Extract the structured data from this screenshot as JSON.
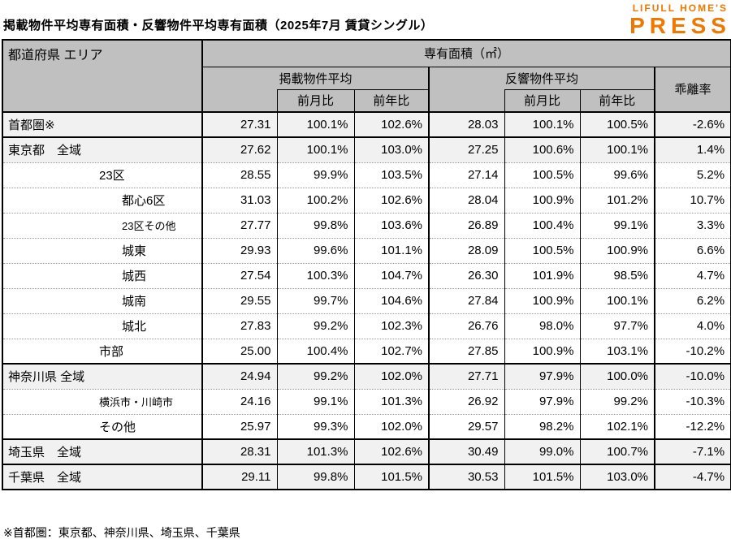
{
  "page_title": "掲載物件平均専有面積・反響物件平均専有面積（2025年7月 賃貸シングル）",
  "footnote": "※首都圏：東京都、神奈川県、埼玉県、千葉県",
  "logo": {
    "line1": "LIFULL HOME'S",
    "line2": "PRESS"
  },
  "colors": {
    "header_bg": "#c0c0c0",
    "shaded_row_bg": "#f1f1f1",
    "border": "#000000",
    "dotted_separator": "#9a9a9a",
    "logo_orange": "#ee7800"
  },
  "chart_data": {
    "type": "table",
    "title": "掲載物件平均専有面積・反響物件平均専有面積（2025年7月 賃貸シングル）",
    "corner_header": "都道府県 エリア",
    "unit_header": "専有面積（㎡）",
    "groups": {
      "listed": "掲載物件平均",
      "inquiry": "反響物件平均",
      "deviation": "乖離率"
    },
    "subheaders": {
      "mom": "前月比",
      "yoy": "前年比"
    },
    "column_keys": [
      "listed_avg",
      "listed_mom",
      "listed_yoy",
      "inquiry_avg",
      "inquiry_mom",
      "inquiry_yoy",
      "deviation_rate"
    ],
    "rows": [
      {
        "label": "首都圏※",
        "indent": 0,
        "shaded": true,
        "section_start": false,
        "small": false,
        "cells": [
          "27.31",
          "100.1%",
          "102.6%",
          "28.03",
          "100.1%",
          "100.5%",
          "-2.6%"
        ]
      },
      {
        "label": "東京都　全域",
        "indent": 0,
        "shaded": true,
        "section_start": true,
        "small": false,
        "cells": [
          "27.62",
          "100.1%",
          "103.0%",
          "27.25",
          "100.6%",
          "100.1%",
          "1.4%"
        ]
      },
      {
        "label": "23区",
        "indent": 1,
        "shaded": false,
        "section_start": false,
        "small": false,
        "cells": [
          "28.55",
          "99.9%",
          "103.5%",
          "27.14",
          "100.5%",
          "99.6%",
          "5.2%"
        ]
      },
      {
        "label": "都心6区",
        "indent": 2,
        "shaded": false,
        "section_start": false,
        "small": false,
        "cells": [
          "31.03",
          "100.2%",
          "102.6%",
          "28.04",
          "100.9%",
          "101.2%",
          "10.7%"
        ]
      },
      {
        "label": "23区その他",
        "indent": 2,
        "shaded": false,
        "section_start": false,
        "small": true,
        "cells": [
          "27.77",
          "99.8%",
          "103.6%",
          "26.89",
          "100.4%",
          "99.1%",
          "3.3%"
        ]
      },
      {
        "label": "城東",
        "indent": 2,
        "shaded": false,
        "section_start": false,
        "small": false,
        "cells": [
          "29.93",
          "99.6%",
          "101.1%",
          "28.09",
          "100.5%",
          "100.9%",
          "6.6%"
        ]
      },
      {
        "label": "城西",
        "indent": 2,
        "shaded": false,
        "section_start": false,
        "small": false,
        "cells": [
          "27.54",
          "100.3%",
          "104.7%",
          "26.30",
          "101.9%",
          "98.5%",
          "4.7%"
        ]
      },
      {
        "label": "城南",
        "indent": 2,
        "shaded": false,
        "section_start": false,
        "small": false,
        "cells": [
          "29.55",
          "99.7%",
          "104.6%",
          "27.84",
          "100.9%",
          "100.1%",
          "6.2%"
        ]
      },
      {
        "label": "城北",
        "indent": 2,
        "shaded": false,
        "section_start": false,
        "small": false,
        "cells": [
          "27.83",
          "99.2%",
          "102.3%",
          "26.76",
          "98.0%",
          "97.7%",
          "4.0%"
        ]
      },
      {
        "label": "市部",
        "indent": 1,
        "shaded": false,
        "section_start": false,
        "small": false,
        "cells": [
          "25.00",
          "100.4%",
          "102.7%",
          "27.85",
          "100.9%",
          "103.1%",
          "-10.2%"
        ]
      },
      {
        "label": "神奈川県 全域",
        "indent": 0,
        "shaded": true,
        "section_start": true,
        "small": false,
        "cells": [
          "24.94",
          "99.2%",
          "102.0%",
          "27.71",
          "97.9%",
          "100.0%",
          "-10.0%"
        ]
      },
      {
        "label": "横浜市・川崎市",
        "indent": 1,
        "shaded": false,
        "section_start": false,
        "small": true,
        "cells": [
          "24.16",
          "99.1%",
          "101.3%",
          "26.92",
          "97.9%",
          "99.2%",
          "-10.3%"
        ]
      },
      {
        "label": "その他",
        "indent": 1,
        "shaded": false,
        "section_start": false,
        "small": false,
        "cells": [
          "25.97",
          "99.3%",
          "102.0%",
          "29.57",
          "98.2%",
          "102.1%",
          "-12.2%"
        ]
      },
      {
        "label": "埼玉県　全域",
        "indent": 0,
        "shaded": true,
        "section_start": true,
        "small": false,
        "cells": [
          "28.31",
          "101.3%",
          "102.6%",
          "30.49",
          "99.0%",
          "100.7%",
          "-7.1%"
        ]
      },
      {
        "label": "千葉県　全域",
        "indent": 0,
        "shaded": true,
        "section_start": true,
        "small": false,
        "cells": [
          "29.11",
          "99.8%",
          "101.5%",
          "30.53",
          "101.5%",
          "103.0%",
          "-4.7%"
        ]
      }
    ],
    "footnote": "※首都圏：東京都、神奈川県、埼玉県、千葉県"
  }
}
